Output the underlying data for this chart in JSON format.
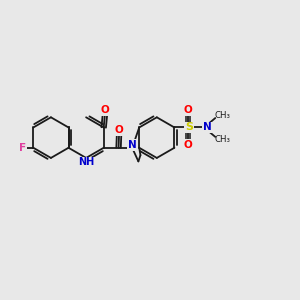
{
  "bg_color": "#e8e8e8",
  "bond_color": "#1a1a1a",
  "atom_colors": {
    "F": "#e040a0",
    "O": "#ff0000",
    "N": "#0000cc",
    "S": "#cccc00",
    "C": "#1a1a1a"
  },
  "figsize": [
    3.0,
    3.0
  ],
  "dpi": 100,
  "xlim": [
    0,
    12
  ],
  "ylim": [
    0,
    10
  ]
}
